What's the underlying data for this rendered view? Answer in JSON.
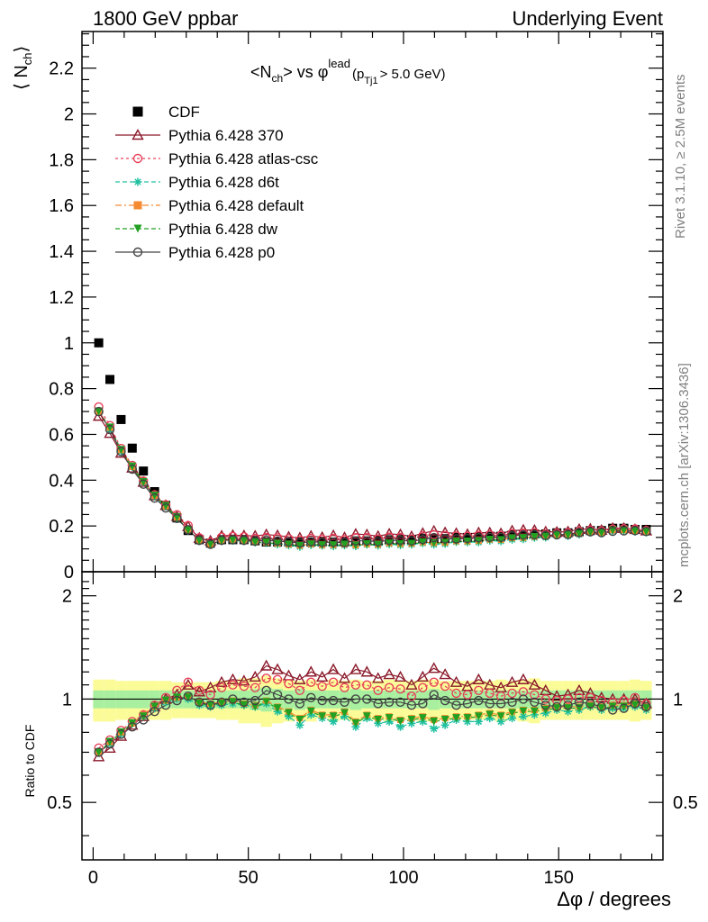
{
  "header": {
    "left": "1800 GeV ppbar",
    "right": "Underlying Event"
  },
  "plot_title": {
    "main": "<N",
    "ch": "ch",
    "vs": "> vs φ",
    "lead": "lead",
    "p": "(p",
    "tj": "Tj1",
    "cut": "> 5.0 GeV)"
  },
  "side_labels": {
    "rivet": "Rivet 3.1.10, ≥ 2.5M events",
    "mcplots": "mcplots.cern.ch [arXiv:1306.3436]"
  },
  "axes": {
    "ylabel_top": "⟨ N",
    "ylabel_top_sub": "ch",
    "ylabel_top_close": "⟩",
    "ylabel_bottom": "Ratio to CDF",
    "xlabel": "Δφ / degrees",
    "top_yticks": [
      "0",
      "0.2",
      "0.4",
      "0.6",
      "0.8",
      "1",
      "1.2",
      "1.4",
      "1.6",
      "1.8",
      "2",
      "2.2"
    ],
    "bottom_yticks": [
      "0.5",
      "1",
      "2"
    ],
    "xticks": [
      "0",
      "50",
      "100",
      "150"
    ]
  },
  "legend": [
    {
      "label": "CDF",
      "color": "#000000",
      "marker": "square",
      "dash": "none"
    },
    {
      "label": "Pythia 6.428 370",
      "color": "#8b1a2b",
      "marker": "triangle-open",
      "dash": "solid"
    },
    {
      "label": "Pythia 6.428 atlas-csc",
      "color": "#e8405a",
      "marker": "circle-open",
      "dash": "dotted"
    },
    {
      "label": "Pythia 6.428 d6t",
      "color": "#20c0a0",
      "marker": "star",
      "dash": "dashed"
    },
    {
      "label": "Pythia 6.428 default",
      "color": "#f58a30",
      "marker": "square",
      "dash": "dashdot"
    },
    {
      "label": "Pythia 6.428 dw",
      "color": "#22a022",
      "marker": "triangle-down",
      "dash": "dashed"
    },
    {
      "label": "Pythia 6.428 p0",
      "color": "#444444",
      "marker": "circle-open",
      "dash": "solid"
    }
  ],
  "chart_data": {
    "type": "scatter",
    "title": "<Nch> vs φlead (pTj1 > 5.0 GeV)",
    "xlabel": "Δφ / degrees",
    "ylabel": "⟨ Nch ⟩",
    "xlim": [
      -3.6,
      183.6
    ],
    "ylim": [
      0,
      2.36
    ],
    "ratio_ylabel": "Ratio to CDF",
    "ratio_ylim": [
      0.34,
      2.35
    ],
    "ratio_scale": "log",
    "x": [
      1.8,
      5.4,
      9,
      12.6,
      16.2,
      19.8,
      23.4,
      27,
      30.6,
      34.2,
      37.8,
      41.4,
      45,
      48.6,
      52.2,
      55.8,
      59.4,
      63,
      66.6,
      70.2,
      73.8,
      77.4,
      81,
      84.6,
      88.2,
      91.8,
      95.4,
      99,
      102.6,
      106.2,
      109.8,
      113.4,
      117,
      120.6,
      124.2,
      127.8,
      131.4,
      135,
      138.6,
      142.2,
      145.8,
      149.4,
      153,
      156.6,
      160.2,
      163.8,
      167.4,
      171,
      174.6,
      178.2
    ],
    "series": [
      {
        "name": "CDF",
        "values": [
          1.0,
          0.84,
          0.665,
          0.54,
          0.44,
          0.35,
          0.29,
          0.235,
          0.18,
          0.14,
          0.125,
          0.14,
          0.14,
          0.14,
          0.135,
          0.13,
          0.13,
          0.13,
          0.13,
          0.13,
          0.13,
          0.13,
          0.13,
          0.135,
          0.135,
          0.135,
          0.14,
          0.14,
          0.14,
          0.145,
          0.145,
          0.145,
          0.15,
          0.15,
          0.15,
          0.155,
          0.155,
          0.16,
          0.16,
          0.165,
          0.165,
          0.17,
          0.17,
          0.175,
          0.18,
          0.18,
          0.19,
          0.19,
          0.185,
          0.185
        ]
      },
      {
        "name": "Pythia 6.428 370",
        "ratio": [
          0.68,
          0.72,
          0.78,
          0.84,
          0.89,
          0.95,
          1.0,
          1.03,
          1.1,
          1.05,
          1.08,
          1.12,
          1.14,
          1.13,
          1.16,
          1.25,
          1.22,
          1.17,
          1.14,
          1.2,
          1.16,
          1.22,
          1.15,
          1.22,
          1.2,
          1.15,
          1.18,
          1.16,
          1.1,
          1.16,
          1.23,
          1.18,
          1.12,
          1.09,
          1.14,
          1.1,
          1.08,
          1.12,
          1.14,
          1.1,
          1.06,
          1.02,
          1.03,
          1.06,
          1.04,
          1.01,
          1.0,
          1.0,
          1.0,
          0.97
        ]
      },
      {
        "name": "Pythia 6.428 atlas-csc",
        "ratio": [
          0.72,
          0.76,
          0.81,
          0.86,
          0.9,
          0.96,
          1.01,
          1.06,
          1.12,
          1.06,
          1.03,
          1.08,
          1.1,
          1.09,
          1.08,
          1.15,
          1.14,
          1.11,
          1.06,
          1.12,
          1.09,
          1.12,
          1.08,
          1.1,
          1.1,
          1.06,
          1.08,
          1.07,
          1.02,
          1.08,
          1.12,
          1.09,
          1.04,
          1.03,
          1.06,
          1.04,
          1.02,
          1.04,
          1.05,
          1.03,
          1.0,
          0.99,
          1.0,
          1.01,
          1.01,
          0.99,
          0.98,
          0.99,
          1.01,
          0.97
        ]
      },
      {
        "name": "Pythia 6.428 d6t",
        "ratio": [
          0.7,
          0.74,
          0.79,
          0.85,
          0.89,
          0.94,
          0.98,
          1.0,
          1.0,
          0.96,
          0.95,
          0.96,
          0.97,
          0.96,
          0.95,
          0.97,
          0.92,
          0.89,
          0.84,
          0.9,
          0.88,
          0.86,
          0.89,
          0.83,
          0.88,
          0.85,
          0.86,
          0.83,
          0.85,
          0.86,
          0.82,
          0.84,
          0.87,
          0.86,
          0.86,
          0.88,
          0.86,
          0.88,
          0.89,
          0.9,
          0.91,
          0.93,
          0.92,
          0.93,
          0.95,
          0.93,
          0.94,
          0.94,
          0.95,
          0.93
        ]
      },
      {
        "name": "Pythia 6.428 default",
        "ratio": [
          0.7,
          0.75,
          0.8,
          0.85,
          0.9,
          0.95,
          0.99,
          1.01,
          1.02,
          0.98,
          0.97,
          0.98,
          0.99,
          0.97,
          0.96,
          0.99,
          0.95,
          0.92,
          0.88,
          0.93,
          0.9,
          0.9,
          0.92,
          0.86,
          0.9,
          0.88,
          0.89,
          0.87,
          0.88,
          0.89,
          0.87,
          0.88,
          0.89,
          0.89,
          0.9,
          0.91,
          0.9,
          0.92,
          0.93,
          0.93,
          0.94,
          0.95,
          0.95,
          0.95,
          0.96,
          0.95,
          0.96,
          0.96,
          0.97,
          0.95
        ]
      },
      {
        "name": "Pythia 6.428 dw",
        "ratio": [
          0.7,
          0.75,
          0.8,
          0.85,
          0.89,
          0.95,
          0.99,
          1.01,
          1.01,
          0.97,
          0.96,
          0.97,
          0.98,
          0.96,
          0.95,
          0.98,
          0.94,
          0.91,
          0.87,
          0.92,
          0.89,
          0.89,
          0.91,
          0.85,
          0.89,
          0.87,
          0.88,
          0.86,
          0.87,
          0.88,
          0.86,
          0.87,
          0.88,
          0.88,
          0.89,
          0.9,
          0.89,
          0.91,
          0.92,
          0.92,
          0.93,
          0.94,
          0.94,
          0.94,
          0.95,
          0.94,
          0.95,
          0.95,
          0.96,
          0.94
        ]
      },
      {
        "name": "Pythia 6.428 p0",
        "ratio": [
          0.7,
          0.74,
          0.79,
          0.83,
          0.87,
          0.92,
          0.96,
          0.99,
          1.02,
          0.98,
          0.96,
          0.98,
          1.0,
          0.98,
          0.99,
          1.06,
          1.03,
          1.0,
          0.97,
          1.01,
          0.99,
          0.99,
          0.98,
          1.0,
          1.0,
          0.97,
          0.98,
          0.98,
          0.96,
          0.97,
          1.03,
          0.99,
          0.96,
          0.97,
          0.99,
          0.97,
          0.97,
          0.98,
          1.0,
          0.98,
          0.96,
          0.95,
          0.96,
          0.98,
          0.97,
          0.95,
          0.93,
          0.94,
          0.97,
          0.95
        ]
      }
    ],
    "band_inner": [
      0.06,
      0.06,
      0.06,
      0.06,
      0.06,
      0.06,
      0.06,
      0.06,
      0.06,
      0.06,
      0.06,
      0.06,
      0.06,
      0.06,
      0.07,
      0.08,
      0.07,
      0.06,
      0.07,
      0.06,
      0.06,
      0.06,
      0.06,
      0.07,
      0.06,
      0.06,
      0.06,
      0.06,
      0.06,
      0.06,
      0.07,
      0.06,
      0.06,
      0.06,
      0.06,
      0.06,
      0.06,
      0.06,
      0.06,
      0.06,
      0.06,
      0.06,
      0.06,
      0.06,
      0.06,
      0.06,
      0.06,
      0.06,
      0.06,
      0.06
    ],
    "band_outer": [
      0.14,
      0.14,
      0.13,
      0.13,
      0.13,
      0.13,
      0.13,
      0.12,
      0.12,
      0.12,
      0.12,
      0.13,
      0.13,
      0.15,
      0.15,
      0.17,
      0.15,
      0.14,
      0.13,
      0.14,
      0.12,
      0.14,
      0.13,
      0.14,
      0.13,
      0.13,
      0.14,
      0.13,
      0.13,
      0.14,
      0.14,
      0.13,
      0.13,
      0.13,
      0.13,
      0.13,
      0.14,
      0.13,
      0.14,
      0.15,
      0.13,
      0.13,
      0.13,
      0.13,
      0.13,
      0.13,
      0.13,
      0.13,
      0.14,
      0.13
    ]
  }
}
